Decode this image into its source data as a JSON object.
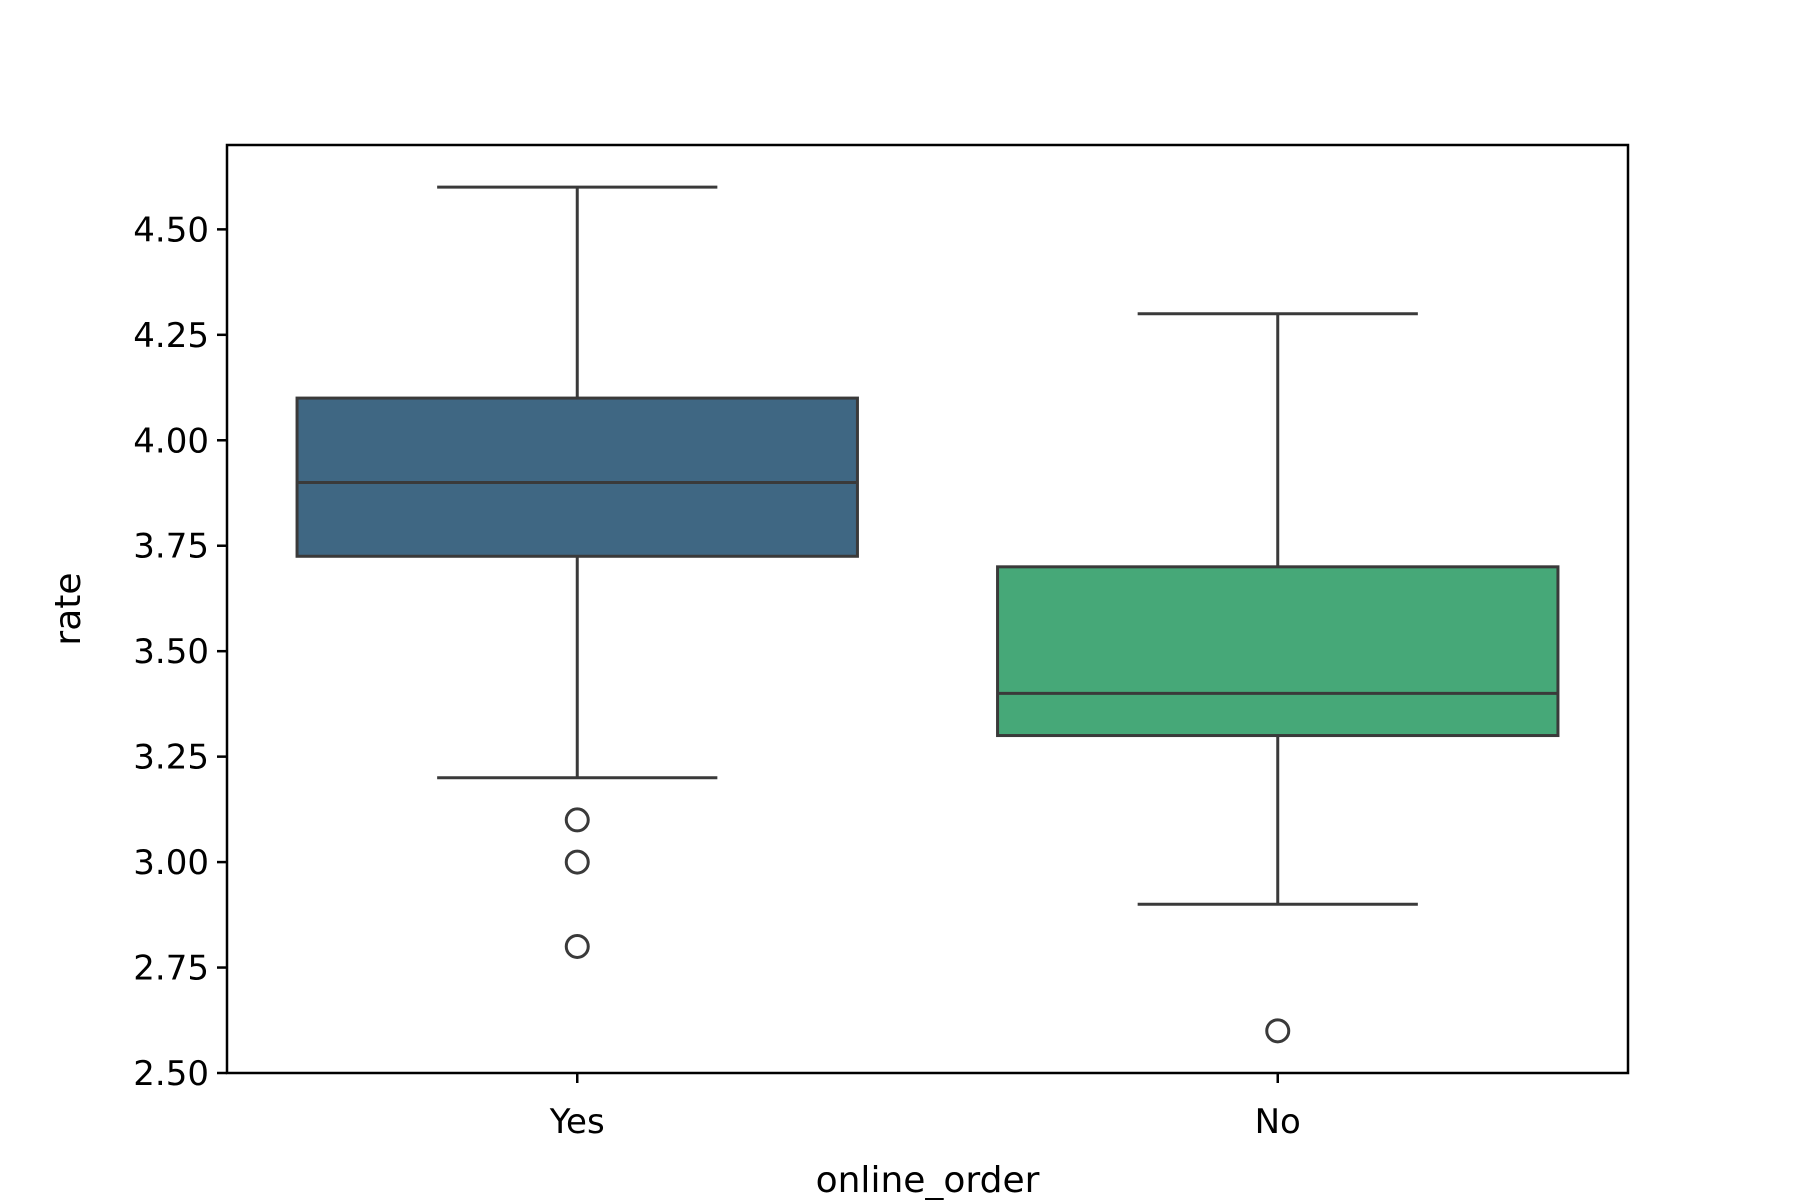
{
  "chart_data": {
    "type": "box",
    "title": "",
    "xlabel": "online_order",
    "ylabel": "rate",
    "ylim": [
      2.5,
      4.7
    ],
    "yticks": [
      2.5,
      2.75,
      3.0,
      3.25,
      3.5,
      3.75,
      4.0,
      4.25,
      4.5
    ],
    "ytick_labels": [
      "2.50",
      "2.75",
      "3.00",
      "3.25",
      "3.50",
      "3.75",
      "4.00",
      "4.25",
      "4.50"
    ],
    "grid": false,
    "categories": [
      "Yes",
      "No"
    ],
    "boxes": [
      {
        "category": "Yes",
        "whisker_low": 3.2,
        "q1": 3.725,
        "median": 3.9,
        "q3": 4.1,
        "whisker_high": 4.6,
        "outliers": [
          3.1,
          3.0,
          2.8
        ],
        "color": "#3f6783"
      },
      {
        "category": "No",
        "whisker_low": 2.9,
        "q1": 3.3,
        "median": 3.4,
        "q3": 3.7,
        "whisker_high": 4.3,
        "outliers": [
          2.6
        ],
        "color": "#46a878"
      }
    ],
    "line_color": "#3a3a3a"
  }
}
